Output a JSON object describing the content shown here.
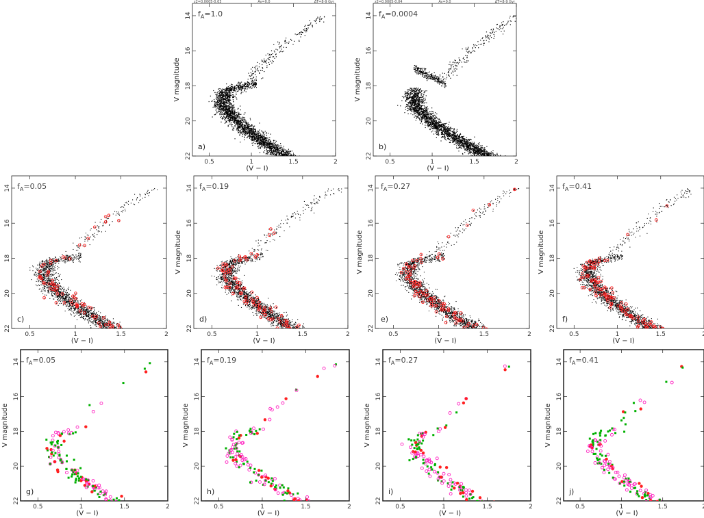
{
  "figure": {
    "panels": [
      {
        "id": "a",
        "letter": "a)",
        "fa_label": "f",
        "fa_sub": "A",
        "fa_value": "=1.0",
        "header": [
          "z2=0.0005-0.03",
          "Av=0.0",
          "ΔT=8-9 Gyr"
        ],
        "style": "black",
        "color_a": "#000000",
        "color_b": null,
        "color_c": null
      },
      {
        "id": "b",
        "letter": "b)",
        "fa_label": "f",
        "fa_sub": "A",
        "fa_value": "=0.0004",
        "header": [
          "z2=0.0005-0.04",
          "Av=0.0",
          "ΔT=8-9 Gyr"
        ],
        "style": "black",
        "color_a": "#000000",
        "color_b": null,
        "color_c": null
      },
      {
        "id": "c",
        "letter": "c)",
        "fa_label": "f",
        "fa_sub": "A",
        "fa_value": "=0.05",
        "header": null,
        "style": "redstar",
        "color_a": "#000000",
        "color_b": "#ff2020",
        "color_c": null
      },
      {
        "id": "d",
        "letter": "d)",
        "fa_label": "f",
        "fa_sub": "A",
        "fa_value": "=0.19",
        "header": null,
        "style": "redstar",
        "color_a": "#000000",
        "color_b": "#ff2020",
        "color_c": null
      },
      {
        "id": "e",
        "letter": "e)",
        "fa_label": "f",
        "fa_sub": "A",
        "fa_value": "=0.27",
        "header": null,
        "style": "redstar",
        "color_a": "#000000",
        "color_b": "#ff2020",
        "color_c": null
      },
      {
        "id": "f",
        "letter": "f)",
        "fa_label": "f",
        "fa_sub": "A",
        "fa_value": "=0.41",
        "header": null,
        "style": "redstar",
        "color_a": "#000000",
        "color_b": "#ff2020",
        "color_c": null
      },
      {
        "id": "g",
        "letter": "g)",
        "fa_label": "f",
        "fa_sub": "A",
        "fa_value": "=0.05",
        "header": null,
        "style": "greenpink",
        "color_a": "#00b000",
        "color_b": "#ff20c0",
        "color_c": "#ff2020"
      },
      {
        "id": "h",
        "letter": "h)",
        "fa_label": "f",
        "fa_sub": "A",
        "fa_value": "=0.19",
        "header": null,
        "style": "greenpink",
        "color_a": "#00b000",
        "color_b": "#ff20c0",
        "color_c": "#ff2020"
      },
      {
        "id": "i",
        "letter": "i)",
        "fa_label": "f",
        "fa_sub": "A",
        "fa_value": "=0.27",
        "header": null,
        "style": "greenpink",
        "color_a": "#00b000",
        "color_b": "#ff20c0",
        "color_c": "#ff2020"
      },
      {
        "id": "j",
        "letter": "j)",
        "fa_label": "f",
        "fa_sub": "A",
        "fa_value": "=0.41",
        "header": null,
        "style": "greenpink",
        "color_a": "#00b000",
        "color_b": "#ff20c0",
        "color_c": "#ff2020"
      }
    ]
  },
  "chart_data": [
    {
      "type": "scatter",
      "panel": "a",
      "xlabel": "(V − I)",
      "ylabel": "V  magnitude",
      "xlim": [
        0.3,
        2.0
      ],
      "ylim": [
        22,
        13.3
      ],
      "xticks": [
        "0.5",
        "1",
        "1.5",
        "2"
      ],
      "yticks": [
        "14",
        "16",
        "18",
        "20",
        "22"
      ],
      "series": [
        {
          "name": "",
          "values": []
        }
      ]
    },
    {
      "type": "scatter",
      "panel": "b",
      "xlabel": "(V − I)",
      "ylabel": "V  magnitude",
      "xlim": [
        0.3,
        2.0
      ],
      "ylim": [
        22,
        13.3
      ],
      "xticks": [
        "0.5",
        "1",
        "1.5",
        "2"
      ],
      "yticks": [
        "14",
        "16",
        "18",
        "20",
        "22"
      ],
      "series": [
        {
          "name": "",
          "values": []
        }
      ]
    },
    {
      "type": "scatter",
      "panel": "c",
      "xlabel": "(V − I)",
      "ylabel": "V  magnitude",
      "xlim": [
        0.3,
        2.0
      ],
      "ylim": [
        22,
        13.3
      ],
      "xticks": [
        "0.5",
        "1",
        "1.5",
        "2"
      ],
      "yticks": [
        "14",
        "16",
        "18",
        "20",
        "22"
      ],
      "series": [
        {
          "name": "",
          "values": []
        }
      ]
    },
    {
      "type": "scatter",
      "panel": "d",
      "xlabel": "(V − I)",
      "ylabel": "V  magnitude",
      "xlim": [
        0.3,
        2.0
      ],
      "ylim": [
        22,
        13.3
      ],
      "xticks": [
        "0.5",
        "1",
        "1.5",
        "2"
      ],
      "yticks": [
        "14",
        "16",
        "18",
        "20",
        "22"
      ],
      "series": [
        {
          "name": "",
          "values": []
        }
      ]
    },
    {
      "type": "scatter",
      "panel": "e",
      "xlabel": "(V − I)",
      "ylabel": "V  magnitude",
      "xlim": [
        0.3,
        2.0
      ],
      "ylim": [
        22,
        13.3
      ],
      "xticks": [
        "0.5",
        "1",
        "1.5",
        "2"
      ],
      "yticks": [
        "14",
        "16",
        "18",
        "20",
        "22"
      ],
      "series": [
        {
          "name": "",
          "values": []
        }
      ]
    },
    {
      "type": "scatter",
      "panel": "f",
      "xlabel": "(V − I)",
      "ylabel": "V  magnitude",
      "xlim": [
        0.3,
        2.0
      ],
      "ylim": [
        22,
        13.3
      ],
      "xticks": [
        "0.5",
        "1",
        "1.5",
        "2"
      ],
      "yticks": [
        "14",
        "16",
        "18",
        "20",
        "22"
      ],
      "series": [
        {
          "name": "",
          "values": []
        }
      ]
    },
    {
      "type": "scatter",
      "panel": "g",
      "xlabel": "(V − I)",
      "ylabel": "V  magnitude",
      "xlim": [
        0.3,
        2.0
      ],
      "ylim": [
        22,
        13.3
      ],
      "xticks": [
        "0.5",
        "1",
        "1.5",
        "2"
      ],
      "yticks": [
        "14",
        "16",
        "18",
        "20",
        "22"
      ],
      "series": [
        {
          "name": "",
          "values": []
        }
      ]
    },
    {
      "type": "scatter",
      "panel": "h",
      "xlabel": "(V − I)",
      "ylabel": "V  magnitude",
      "xlim": [
        0.3,
        2.0
      ],
      "ylim": [
        22,
        13.3
      ],
      "xticks": [
        "0.5",
        "1",
        "1.5",
        "2"
      ],
      "yticks": [
        "14",
        "16",
        "18",
        "20",
        "22"
      ],
      "series": [
        {
          "name": "",
          "values": []
        }
      ]
    },
    {
      "type": "scatter",
      "panel": "i",
      "xlabel": "(V − I)",
      "ylabel": "V  magnitude",
      "xlim": [
        0.3,
        2.0
      ],
      "ylim": [
        22,
        13.3
      ],
      "xticks": [
        "0.5",
        "1",
        "1.5",
        "2"
      ],
      "yticks": [
        "14",
        "16",
        "18",
        "20",
        "22"
      ],
      "series": [
        {
          "name": "",
          "values": []
        }
      ]
    },
    {
      "type": "scatter",
      "panel": "j",
      "xlabel": "(V − I)",
      "ylabel": "V  magnitude",
      "xlim": [
        0.3,
        2.0
      ],
      "ylim": [
        22,
        13.3
      ],
      "xticks": [
        "0.5",
        "1",
        "1.5",
        "2"
      ],
      "yticks": [
        "14",
        "16",
        "18",
        "20",
        "22"
      ],
      "series": [
        {
          "name": "",
          "values": []
        }
      ]
    }
  ]
}
